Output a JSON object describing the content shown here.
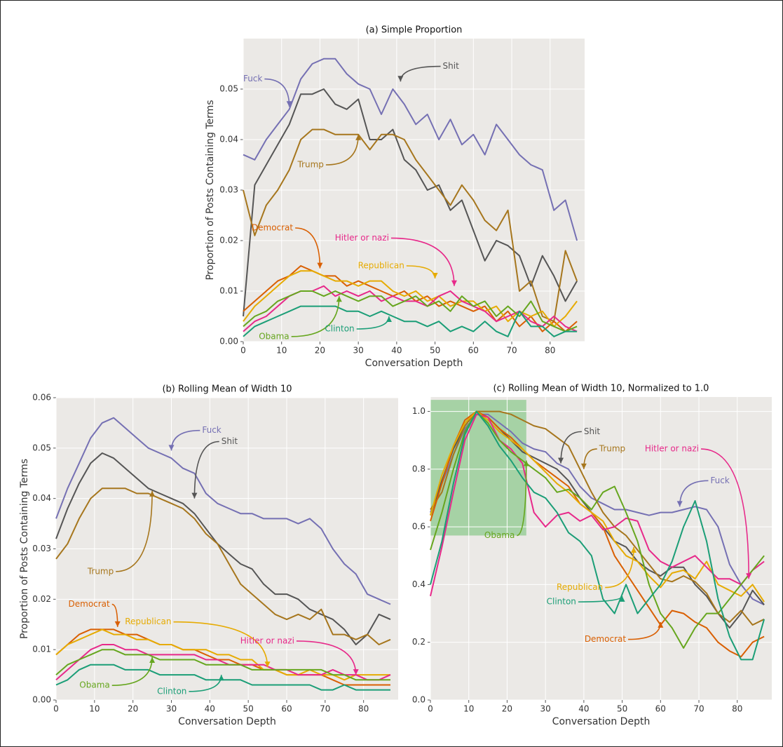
{
  "chart_data": [
    {
      "type": "line",
      "title": "(a) Simple Proportion",
      "xlabel": "Conversation Depth",
      "ylabel": "Proportion of Posts Containing Terms",
      "x": [
        0,
        3,
        6,
        9,
        12,
        15,
        18,
        21,
        24,
        27,
        30,
        33,
        36,
        39,
        42,
        45,
        48,
        51,
        54,
        57,
        60,
        63,
        66,
        69,
        72,
        75,
        78,
        81,
        84,
        87
      ],
      "xlim": [
        0,
        89
      ],
      "xticks": [
        0,
        10,
        20,
        30,
        40,
        50,
        60,
        70,
        80
      ],
      "ylim": [
        0,
        0.06
      ],
      "yticks": [
        {
          "value": 0,
          "label": "0.00"
        },
        0.01,
        0.02,
        0.03,
        0.04,
        0.05
      ],
      "grid": true,
      "series": [
        {
          "name": "Fuck",
          "color": "#7570b3",
          "values": [
            0.037,
            0.036,
            0.04,
            0.043,
            0.046,
            0.052,
            0.055,
            0.056,
            0.056,
            0.053,
            0.051,
            0.05,
            0.045,
            0.05,
            0.047,
            0.043,
            0.045,
            0.04,
            0.044,
            0.039,
            0.041,
            0.037,
            0.043,
            0.04,
            0.037,
            0.035,
            0.034,
            0.026,
            0.028,
            0.02
          ]
        },
        {
          "name": "Shit",
          "color": "#555555",
          "values": [
            0.005,
            0.031,
            0.035,
            0.039,
            0.043,
            0.049,
            0.049,
            0.05,
            0.047,
            0.046,
            0.048,
            0.04,
            0.04,
            0.042,
            0.036,
            0.034,
            0.03,
            0.031,
            0.026,
            0.028,
            0.022,
            0.016,
            0.02,
            0.019,
            0.017,
            0.011,
            0.017,
            0.013,
            0.008,
            0.012
          ]
        },
        {
          "name": "Trump",
          "color": "#a6761d",
          "values": [
            0.03,
            0.021,
            0.027,
            0.03,
            0.034,
            0.04,
            0.042,
            0.042,
            0.041,
            0.041,
            0.041,
            0.038,
            0.041,
            0.041,
            0.04,
            0.036,
            0.033,
            0.03,
            0.027,
            0.031,
            0.028,
            0.024,
            0.022,
            0.026,
            0.01,
            0.012,
            0.005,
            0.004,
            0.018,
            0.012
          ]
        },
        {
          "name": "Democrat",
          "color": "#d95f02",
          "values": [
            0.006,
            0.008,
            0.01,
            0.012,
            0.013,
            0.015,
            0.014,
            0.013,
            0.013,
            0.011,
            0.012,
            0.011,
            0.01,
            0.009,
            0.01,
            0.008,
            0.009,
            0.007,
            0.008,
            0.007,
            0.006,
            0.007,
            0.004,
            0.006,
            0.003,
            0.005,
            0.002,
            0.004,
            0.002,
            0.004
          ]
        },
        {
          "name": "Republican",
          "color": "#e6ab02",
          "values": [
            0.004,
            0.007,
            0.009,
            0.011,
            0.013,
            0.014,
            0.014,
            0.013,
            0.012,
            0.012,
            0.011,
            0.012,
            0.012,
            0.01,
            0.009,
            0.01,
            0.008,
            0.009,
            0.007,
            0.008,
            0.008,
            0.006,
            0.007,
            0.004,
            0.006,
            0.005,
            0.006,
            0.003,
            0.005,
            0.008
          ]
        },
        {
          "name": "Hitler or nazi",
          "color": "#e7298a",
          "values": [
            0.002,
            0.004,
            0.005,
            0.007,
            0.009,
            0.01,
            0.01,
            0.011,
            0.009,
            0.01,
            0.009,
            0.01,
            0.008,
            0.009,
            0.008,
            0.008,
            0.007,
            0.009,
            0.01,
            0.008,
            0.007,
            0.006,
            0.004,
            0.005,
            0.006,
            0.004,
            0.003,
            0.005,
            0.003,
            0.002
          ]
        },
        {
          "name": "Obama",
          "color": "#66a61e",
          "values": [
            0.003,
            0.005,
            0.006,
            0.008,
            0.009,
            0.01,
            0.01,
            0.009,
            0.01,
            0.009,
            0.008,
            0.009,
            0.009,
            0.007,
            0.008,
            0.009,
            0.007,
            0.008,
            0.006,
            0.009,
            0.007,
            0.008,
            0.005,
            0.007,
            0.005,
            0.008,
            0.004,
            0.003,
            0.002,
            0.003
          ]
        },
        {
          "name": "Clinton",
          "color": "#1b9e77",
          "values": [
            0.001,
            0.003,
            0.004,
            0.005,
            0.006,
            0.007,
            0.007,
            0.007,
            0.007,
            0.006,
            0.006,
            0.005,
            0.006,
            0.005,
            0.004,
            0.004,
            0.003,
            0.004,
            0.002,
            0.003,
            0.002,
            0.004,
            0.002,
            0.001,
            0.006,
            0.003,
            0.003,
            0.001,
            0.002,
            0.002
          ]
        }
      ]
    },
    {
      "type": "line",
      "title": "(b) Rolling Mean of Width 10",
      "xlabel": "Conversation Depth",
      "ylabel": "Proportion of Posts Containing Terms",
      "x": [
        0,
        3,
        6,
        9,
        12,
        15,
        18,
        21,
        24,
        27,
        30,
        33,
        36,
        39,
        42,
        45,
        48,
        51,
        54,
        57,
        60,
        63,
        66,
        69,
        72,
        75,
        78,
        81,
        84,
        87
      ],
      "xlim": [
        0,
        89
      ],
      "xticks": [
        0,
        10,
        20,
        30,
        40,
        50,
        60,
        70,
        80
      ],
      "ylim": [
        0,
        0.06
      ],
      "yticks": [
        {
          "value": 0,
          "label": "0.00"
        },
        0.01,
        0.02,
        0.03,
        0.04,
        0.05,
        0.06
      ],
      "grid": true,
      "series": [
        {
          "name": "Fuck",
          "color": "#7570b3",
          "values": [
            0.036,
            0.042,
            0.047,
            0.052,
            0.055,
            0.056,
            0.054,
            0.052,
            0.05,
            0.049,
            0.048,
            0.046,
            0.045,
            0.041,
            0.039,
            0.038,
            0.037,
            0.037,
            0.036,
            0.036,
            0.036,
            0.035,
            0.036,
            0.034,
            0.03,
            0.027,
            0.025,
            0.021,
            0.02,
            0.019
          ]
        },
        {
          "name": "Shit",
          "color": "#555555",
          "values": [
            0.032,
            0.038,
            0.043,
            0.047,
            0.049,
            0.048,
            0.046,
            0.044,
            0.042,
            0.041,
            0.04,
            0.039,
            0.037,
            0.034,
            0.031,
            0.029,
            0.027,
            0.026,
            0.023,
            0.021,
            0.021,
            0.02,
            0.018,
            0.017,
            0.016,
            0.014,
            0.011,
            0.013,
            0.017,
            0.016
          ]
        },
        {
          "name": "Trump",
          "color": "#a6761d",
          "values": [
            0.028,
            0.031,
            0.036,
            0.04,
            0.042,
            0.042,
            0.042,
            0.041,
            0.041,
            0.04,
            0.039,
            0.038,
            0.036,
            0.033,
            0.031,
            0.027,
            0.023,
            0.021,
            0.019,
            0.017,
            0.016,
            0.017,
            0.016,
            0.018,
            0.013,
            0.013,
            0.012,
            0.013,
            0.011,
            0.012
          ]
        },
        {
          "name": "Democrat",
          "color": "#d95f02",
          "values": [
            0.009,
            0.011,
            0.013,
            0.014,
            0.014,
            0.014,
            0.013,
            0.013,
            0.012,
            0.011,
            0.011,
            0.01,
            0.01,
            0.009,
            0.008,
            0.008,
            0.007,
            0.007,
            0.006,
            0.006,
            0.005,
            0.005,
            0.005,
            0.005,
            0.004,
            0.003,
            0.003,
            0.003,
            0.003,
            0.003
          ]
        },
        {
          "name": "Republican",
          "color": "#e6ab02",
          "values": [
            0.009,
            0.011,
            0.012,
            0.013,
            0.014,
            0.013,
            0.013,
            0.012,
            0.012,
            0.011,
            0.011,
            0.01,
            0.01,
            0.01,
            0.009,
            0.009,
            0.008,
            0.008,
            0.006,
            0.006,
            0.005,
            0.005,
            0.006,
            0.005,
            0.005,
            0.004,
            0.005,
            0.005,
            0.005,
            0.005
          ]
        },
        {
          "name": "Hitler or nazi",
          "color": "#e7298a",
          "values": [
            0.004,
            0.006,
            0.008,
            0.01,
            0.011,
            0.011,
            0.01,
            0.01,
            0.009,
            0.009,
            0.009,
            0.009,
            0.009,
            0.008,
            0.008,
            0.007,
            0.007,
            0.007,
            0.007,
            0.006,
            0.006,
            0.005,
            0.005,
            0.005,
            0.006,
            0.005,
            0.005,
            0.004,
            0.004,
            0.005
          ]
        },
        {
          "name": "Obama",
          "color": "#66a61e",
          "values": [
            0.005,
            0.007,
            0.008,
            0.009,
            0.01,
            0.01,
            0.009,
            0.009,
            0.009,
            0.008,
            0.008,
            0.008,
            0.008,
            0.007,
            0.007,
            0.007,
            0.007,
            0.006,
            0.006,
            0.006,
            0.006,
            0.006,
            0.006,
            0.006,
            0.005,
            0.005,
            0.004,
            0.004,
            0.004,
            0.004
          ]
        },
        {
          "name": "Clinton",
          "color": "#1b9e77",
          "values": [
            0.003,
            0.004,
            0.006,
            0.007,
            0.007,
            0.007,
            0.006,
            0.006,
            0.006,
            0.005,
            0.005,
            0.005,
            0.005,
            0.004,
            0.004,
            0.004,
            0.004,
            0.003,
            0.003,
            0.003,
            0.003,
            0.003,
            0.003,
            0.002,
            0.002,
            0.003,
            0.002,
            0.002,
            0.002,
            0.002
          ]
        }
      ]
    },
    {
      "type": "line",
      "title": "(c) Rolling Mean of Width 10, Normalized to 1.0",
      "xlabel": "Conversation Depth",
      "x": [
        0,
        3,
        6,
        9,
        12,
        15,
        18,
        21,
        24,
        27,
        30,
        33,
        36,
        39,
        42,
        45,
        48,
        51,
        54,
        57,
        60,
        63,
        66,
        69,
        72,
        75,
        78,
        81,
        84,
        87
      ],
      "xlim": [
        0,
        89
      ],
      "xticks": [
        0,
        10,
        20,
        30,
        40,
        50,
        60,
        70,
        80
      ],
      "ylim": [
        0,
        1.05
      ],
      "yticks": [
        {
          "value": 0,
          "label": "0.0"
        },
        0.2,
        0.4,
        0.6,
        0.8,
        {
          "value": 1,
          "label": "1.0"
        }
      ],
      "grid": true,
      "highlight": {
        "x": [
          0,
          25
        ],
        "y": [
          0.57,
          1.04
        ],
        "color": "#8fc98f"
      },
      "series": [
        {
          "name": "Fuck",
          "color": "#7570b3",
          "values": [
            0.65,
            0.75,
            0.85,
            0.94,
            0.99,
            0.99,
            0.96,
            0.93,
            0.89,
            0.87,
            0.86,
            0.82,
            0.8,
            0.74,
            0.7,
            0.68,
            0.66,
            0.66,
            0.65,
            0.64,
            0.65,
            0.65,
            0.66,
            0.67,
            0.66,
            0.6,
            0.47,
            0.4,
            0.35,
            0.33
          ]
        },
        {
          "name": "Shit",
          "color": "#555555",
          "values": [
            0.64,
            0.76,
            0.87,
            0.95,
            1.0,
            0.98,
            0.94,
            0.9,
            0.86,
            0.84,
            0.82,
            0.8,
            0.76,
            0.7,
            0.65,
            0.6,
            0.55,
            0.53,
            0.48,
            0.45,
            0.43,
            0.46,
            0.46,
            0.4,
            0.36,
            0.3,
            0.25,
            0.3,
            0.38,
            0.33
          ]
        },
        {
          "name": "Trump",
          "color": "#a6761d",
          "values": [
            0.66,
            0.72,
            0.85,
            0.95,
            1.0,
            1.0,
            1.0,
            0.99,
            0.97,
            0.95,
            0.94,
            0.91,
            0.88,
            0.8,
            0.72,
            0.65,
            0.6,
            0.57,
            0.52,
            0.47,
            0.42,
            0.41,
            0.43,
            0.41,
            0.37,
            0.3,
            0.27,
            0.31,
            0.26,
            0.28
          ]
        },
        {
          "name": "Democrat",
          "color": "#d95f02",
          "values": [
            0.62,
            0.75,
            0.88,
            0.97,
            1.0,
            0.98,
            0.94,
            0.91,
            0.87,
            0.83,
            0.8,
            0.77,
            0.74,
            0.68,
            0.65,
            0.6,
            0.5,
            0.44,
            0.38,
            0.32,
            0.26,
            0.31,
            0.3,
            0.27,
            0.25,
            0.2,
            0.17,
            0.15,
            0.2,
            0.22
          ]
        },
        {
          "name": "Republican",
          "color": "#e6ab02",
          "values": [
            0.64,
            0.78,
            0.88,
            0.96,
            1.0,
            0.97,
            0.93,
            0.9,
            0.87,
            0.83,
            0.79,
            0.75,
            0.72,
            0.68,
            0.65,
            0.62,
            0.55,
            0.5,
            0.48,
            0.43,
            0.39,
            0.44,
            0.45,
            0.42,
            0.48,
            0.4,
            0.38,
            0.36,
            0.4,
            0.34
          ]
        },
        {
          "name": "Hitler or nazi",
          "color": "#e7298a",
          "values": [
            0.36,
            0.53,
            0.72,
            0.9,
            0.99,
            0.98,
            0.9,
            0.87,
            0.82,
            0.65,
            0.6,
            0.64,
            0.65,
            0.62,
            0.64,
            0.59,
            0.6,
            0.63,
            0.62,
            0.52,
            0.48,
            0.46,
            0.48,
            0.5,
            0.46,
            0.42,
            0.42,
            0.4,
            0.45,
            0.48
          ]
        },
        {
          "name": "Obama",
          "color": "#66a61e",
          "values": [
            0.52,
            0.65,
            0.8,
            0.93,
            1.0,
            0.96,
            0.9,
            0.86,
            0.83,
            0.8,
            0.77,
            0.72,
            0.73,
            0.7,
            0.66,
            0.72,
            0.74,
            0.65,
            0.55,
            0.4,
            0.3,
            0.25,
            0.18,
            0.25,
            0.3,
            0.3,
            0.35,
            0.4,
            0.45,
            0.5
          ]
        },
        {
          "name": "Clinton",
          "color": "#1b9e77",
          "values": [
            0.4,
            0.55,
            0.75,
            0.92,
            1.0,
            0.95,
            0.88,
            0.83,
            0.77,
            0.72,
            0.7,
            0.65,
            0.58,
            0.55,
            0.5,
            0.35,
            0.3,
            0.4,
            0.3,
            0.35,
            0.4,
            0.48,
            0.6,
            0.69,
            0.55,
            0.35,
            0.22,
            0.14,
            0.14,
            0.28
          ]
        }
      ]
    }
  ]
}
